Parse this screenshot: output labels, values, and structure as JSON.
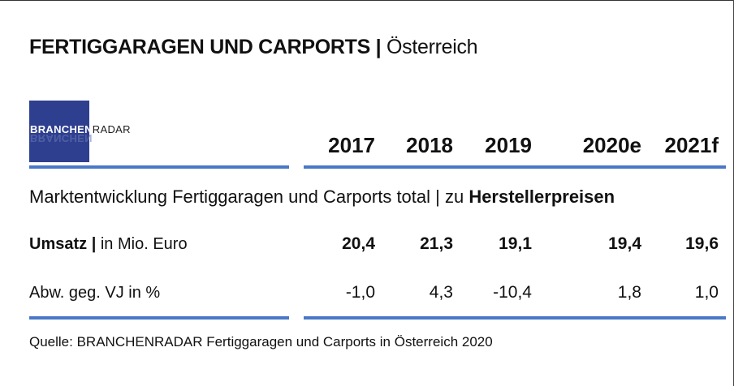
{
  "title": {
    "main": "FERTIGGARAGEN UND CARPORTS |",
    "sub": " Österreich"
  },
  "logo": {
    "part1": "BRANCHEN",
    "part2": "RADAR"
  },
  "years": [
    "2017",
    "2018",
    "2019",
    "2020e",
    "2021f"
  ],
  "section": {
    "text": "Marktentwicklung Fertiggaragen und Carports total | zu ",
    "bold": "Herstellerpreisen"
  },
  "rows": [
    {
      "label_bold": "Umsatz |",
      "label_rest": " in Mio. Euro",
      "values": [
        "20,4",
        "21,3",
        "19,1",
        "19,4",
        "19,6"
      ]
    },
    {
      "label_bold": "",
      "label_rest": "Abw. geg. VJ in %",
      "values": [
        "-1,0",
        "4,3",
        "-10,4",
        "1,8",
        "1,0"
      ]
    }
  ],
  "source": "Quelle: BRANCHENRADAR Fertiggaragen und Carports in Österreich 2020",
  "colors": {
    "rule": "#4a78c8",
    "logo_bg": "#2f3f8f"
  }
}
